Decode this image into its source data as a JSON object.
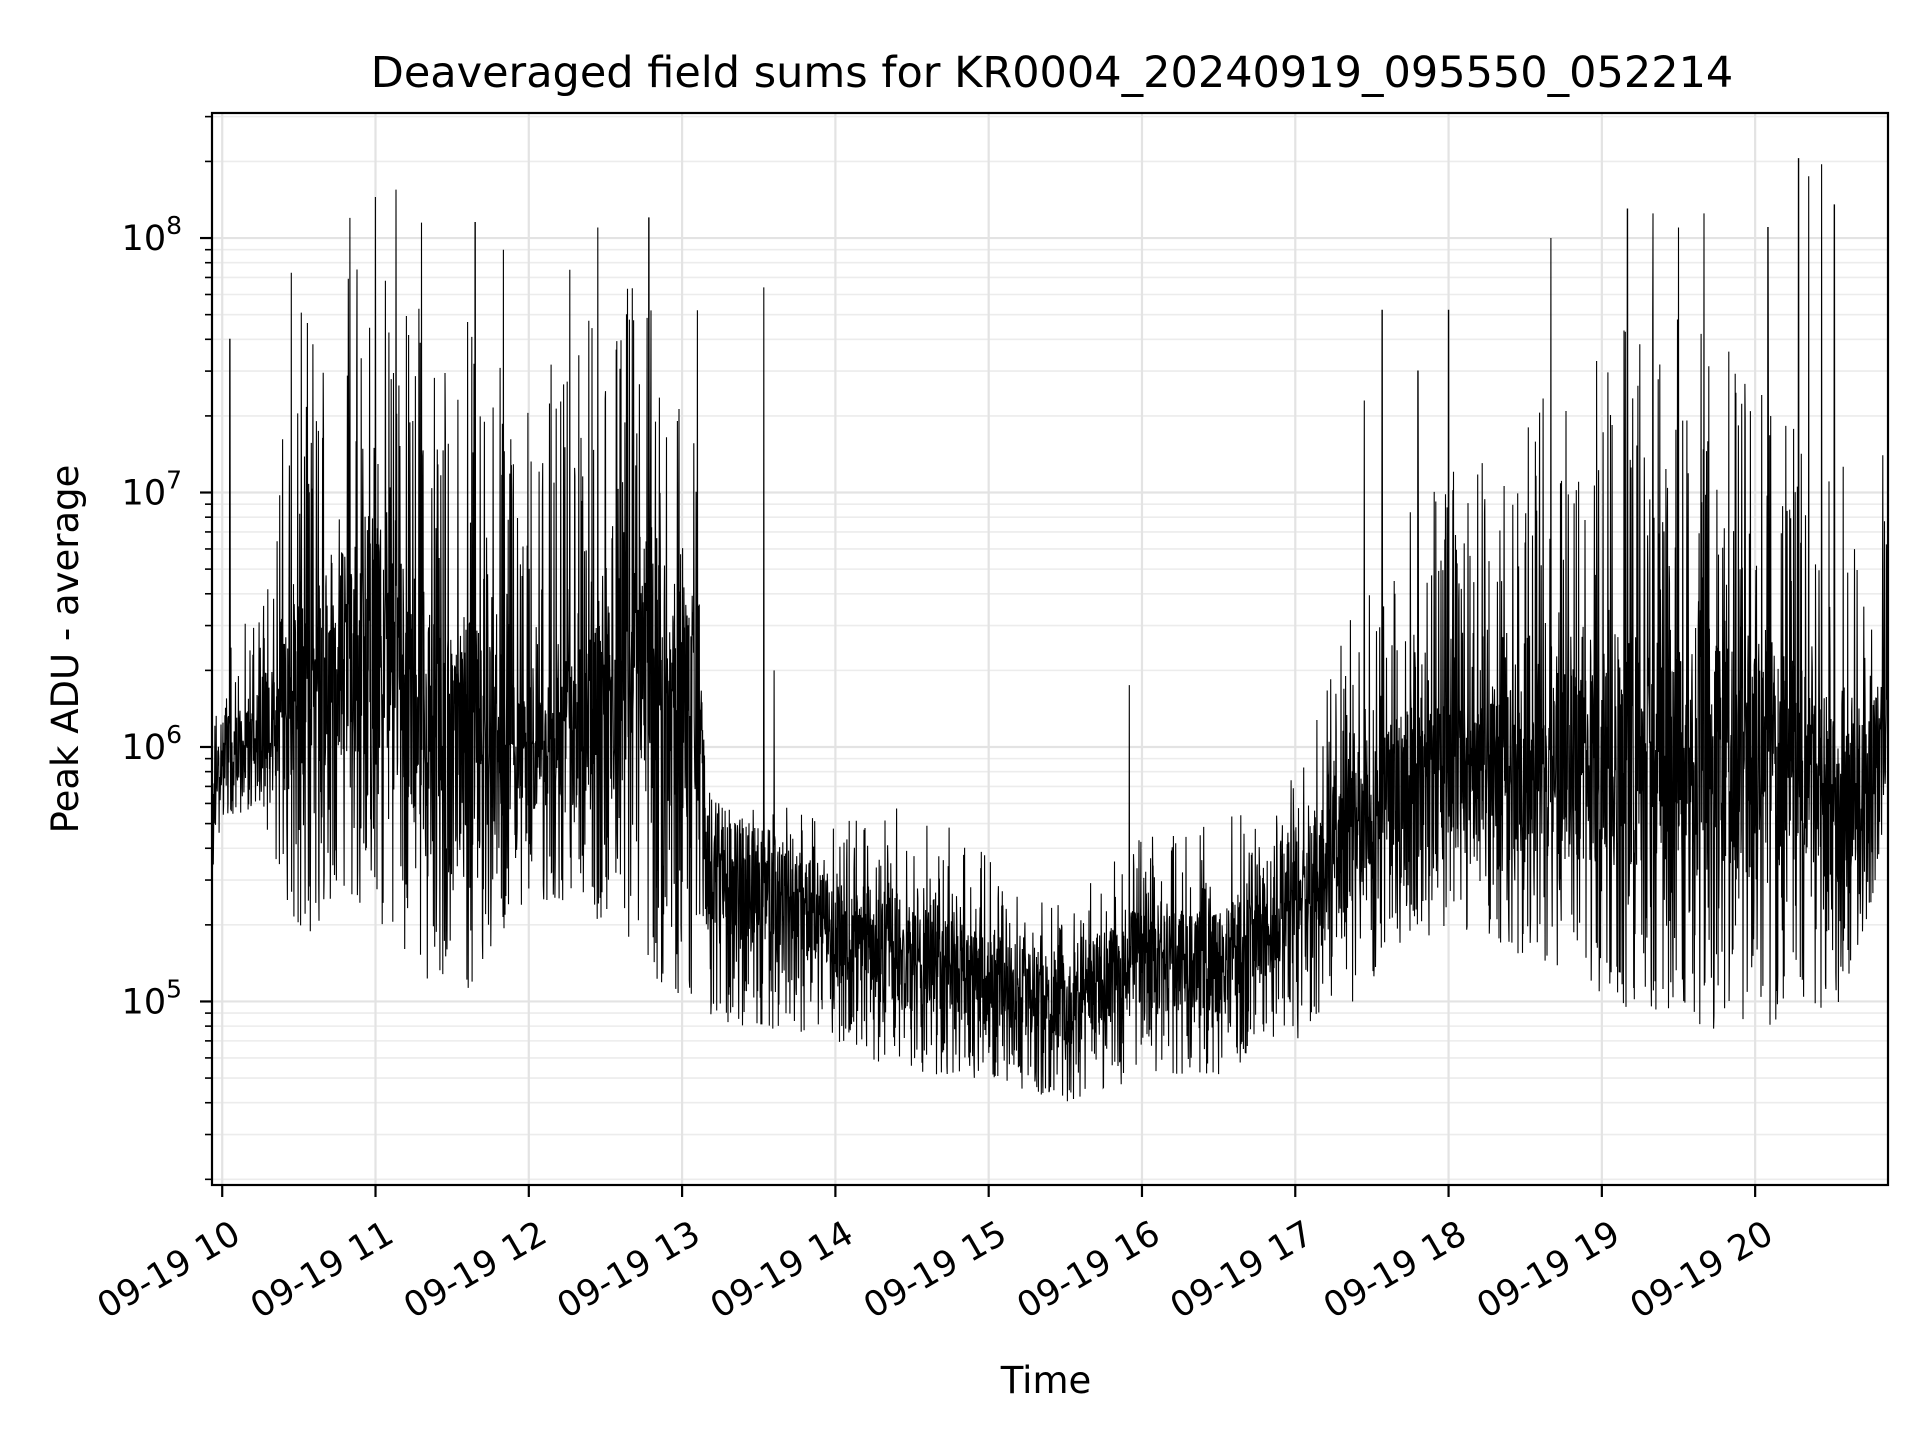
{
  "chart_data": {
    "type": "line",
    "title": "Deaveraged field sums for KR0004_20240919_095550_052214",
    "xlabel": "Time",
    "ylabel": "Peak ADU - average",
    "yscale": "log",
    "grid": true,
    "xlim": [
      "2024-09-19 09:56",
      "2024-09-19 20:52"
    ],
    "ylim": [
      19000,
      310000000
    ],
    "xticks": [
      {
        "label": "09-19 10",
        "value": "2024-09-19 10:00"
      },
      {
        "label": "09-19 11",
        "value": "2024-09-19 11:00"
      },
      {
        "label": "09-19 12",
        "value": "2024-09-19 12:00"
      },
      {
        "label": "09-19 13",
        "value": "2024-09-19 13:00"
      },
      {
        "label": "09-19 14",
        "value": "2024-09-19 14:00"
      },
      {
        "label": "09-19 15",
        "value": "2024-09-19 15:00"
      },
      {
        "label": "09-19 16",
        "value": "2024-09-19 16:00"
      },
      {
        "label": "09-19 17",
        "value": "2024-09-19 17:00"
      },
      {
        "label": "09-19 18",
        "value": "2024-09-19 18:00"
      },
      {
        "label": "09-19 19",
        "value": "2024-09-19 19:00"
      },
      {
        "label": "09-19 20",
        "value": "2024-09-19 20:00"
      }
    ],
    "yticks": [
      {
        "base": "10",
        "exp": "5",
        "value": 100000
      },
      {
        "base": "10",
        "exp": "6",
        "value": 1000000
      },
      {
        "base": "10",
        "exp": "7",
        "value": 10000000
      },
      {
        "base": "10",
        "exp": "8",
        "value": 100000000
      }
    ],
    "series": [
      {
        "color": "#000000",
        "envelope": [
          {
            "t": "2024-09-19 09:56",
            "median": 550000,
            "low": 300000,
            "high": 1300000
          },
          {
            "t": "2024-09-19 10:00",
            "median": 1000000,
            "low": 500000,
            "high": 2000000
          },
          {
            "t": "2024-09-19 10:15",
            "median": 1100000,
            "low": 600000,
            "high": 5000000
          },
          {
            "t": "2024-09-19 10:30",
            "median": 1800000,
            "low": 150000,
            "high": 50000000
          },
          {
            "t": "2024-09-19 10:45",
            "median": 2500000,
            "low": 250000,
            "high": 80000000
          },
          {
            "t": "2024-09-19 11:00",
            "median": 2800000,
            "low": 200000,
            "high": 110000000
          },
          {
            "t": "2024-09-19 11:15",
            "median": 1700000,
            "low": 140000,
            "high": 60000000
          },
          {
            "t": "2024-09-19 11:30",
            "median": 1000000,
            "low": 80000,
            "high": 50000000
          },
          {
            "t": "2024-09-19 11:45",
            "median": 1200000,
            "low": 150000,
            "high": 50000000
          },
          {
            "t": "2024-09-19 12:00",
            "median": 900000,
            "low": 250000,
            "high": 25000000
          },
          {
            "t": "2024-09-19 12:15",
            "median": 1100000,
            "low": 250000,
            "high": 40000000
          },
          {
            "t": "2024-09-19 12:30",
            "median": 1400000,
            "low": 200000,
            "high": 60000000
          },
          {
            "t": "2024-09-19 12:45",
            "median": 2200000,
            "low": 120000,
            "high": 90000000
          },
          {
            "t": "2024-09-19 13:05",
            "median": 1500000,
            "low": 100000,
            "high": 20000000
          },
          {
            "t": "2024-09-19 13:10",
            "median": 350000,
            "low": 80000,
            "high": 500000
          },
          {
            "t": "2024-09-19 13:30",
            "median": 280000,
            "low": 80000,
            "high": 600000
          },
          {
            "t": "2024-09-19 14:00",
            "median": 200000,
            "low": 70000,
            "high": 550000
          },
          {
            "t": "2024-09-19 14:30",
            "median": 150000,
            "low": 50000,
            "high": 600000
          },
          {
            "t": "2024-09-19 15:00",
            "median": 120000,
            "low": 50000,
            "high": 400000
          },
          {
            "t": "2024-09-19 15:30",
            "median": 100000,
            "low": 40000,
            "high": 250000
          },
          {
            "t": "2024-09-19 16:00",
            "median": 150000,
            "low": 50000,
            "high": 450000
          },
          {
            "t": "2024-09-19 16:30",
            "median": 140000,
            "low": 50000,
            "high": 500000
          },
          {
            "t": "2024-09-19 17:00",
            "median": 280000,
            "low": 70000,
            "high": 800000
          },
          {
            "t": "2024-09-19 17:20",
            "median": 450000,
            "low": 90000,
            "high": 3000000
          },
          {
            "t": "2024-09-19 17:40",
            "median": 700000,
            "low": 150000,
            "high": 8000000
          },
          {
            "t": "2024-09-19 18:00",
            "median": 900000,
            "low": 200000,
            "high": 12000000
          },
          {
            "t": "2024-09-19 18:30",
            "median": 800000,
            "low": 150000,
            "high": 20000000
          },
          {
            "t": "2024-09-19 19:00",
            "median": 900000,
            "low": 100000,
            "high": 40000000
          },
          {
            "t": "2024-09-19 19:30",
            "median": 1000000,
            "low": 80000,
            "high": 60000000
          },
          {
            "t": "2024-09-19 20:00",
            "median": 900000,
            "low": 70000,
            "high": 50000000
          },
          {
            "t": "2024-09-19 20:30",
            "median": 700000,
            "low": 80000,
            "high": 30000000
          },
          {
            "t": "2024-09-19 20:45",
            "median": 800000,
            "low": 200000,
            "high": 3000000
          },
          {
            "t": "2024-09-19 20:52",
            "median": 1600000,
            "low": 700000,
            "high": 10000000
          }
        ],
        "spikes": [
          {
            "t": "2024-09-19 10:03",
            "value": 40000000
          },
          {
            "t": "2024-09-19 10:27",
            "value": 73000000
          },
          {
            "t": "2024-09-19 10:50",
            "value": 120000000
          },
          {
            "t": "2024-09-19 11:00",
            "value": 145000000
          },
          {
            "t": "2024-09-19 11:08",
            "value": 155000000
          },
          {
            "t": "2024-09-19 11:18",
            "value": 115000000
          },
          {
            "t": "2024-09-19 11:39",
            "value": 115000000
          },
          {
            "t": "2024-09-19 11:50",
            "value": 90000000
          },
          {
            "t": "2024-09-19 12:16",
            "value": 75000000
          },
          {
            "t": "2024-09-19 12:27",
            "value": 110000000
          },
          {
            "t": "2024-09-19 12:47",
            "value": 120000000
          },
          {
            "t": "2024-09-19 13:06",
            "value": 52000000
          },
          {
            "t": "2024-09-19 13:32",
            "value": 64000000
          },
          {
            "t": "2024-09-19 13:36",
            "value": 2000000
          },
          {
            "t": "2024-09-19 15:55",
            "value": 1750000
          },
          {
            "t": "2024-09-19 17:27",
            "value": 23000000
          },
          {
            "t": "2024-09-19 17:34",
            "value": 52000000
          },
          {
            "t": "2024-09-19 17:48",
            "value": 30000000
          },
          {
            "t": "2024-09-19 18:00",
            "value": 52000000
          },
          {
            "t": "2024-09-19 18:40",
            "value": 100000000
          },
          {
            "t": "2024-09-19 19:10",
            "value": 130000000
          },
          {
            "t": "2024-09-19 19:20",
            "value": 125000000
          },
          {
            "t": "2024-09-19 19:30",
            "value": 110000000
          },
          {
            "t": "2024-09-19 19:40",
            "value": 125000000
          },
          {
            "t": "2024-09-19 20:05",
            "value": 110000000
          },
          {
            "t": "2024-09-19 20:17",
            "value": 205000000
          },
          {
            "t": "2024-09-19 20:21",
            "value": 175000000
          },
          {
            "t": "2024-09-19 20:26",
            "value": 195000000
          },
          {
            "t": "2024-09-19 20:31",
            "value": 135000000
          },
          {
            "t": "2024-09-19 20:50",
            "value": 14000000
          }
        ]
      }
    ]
  }
}
